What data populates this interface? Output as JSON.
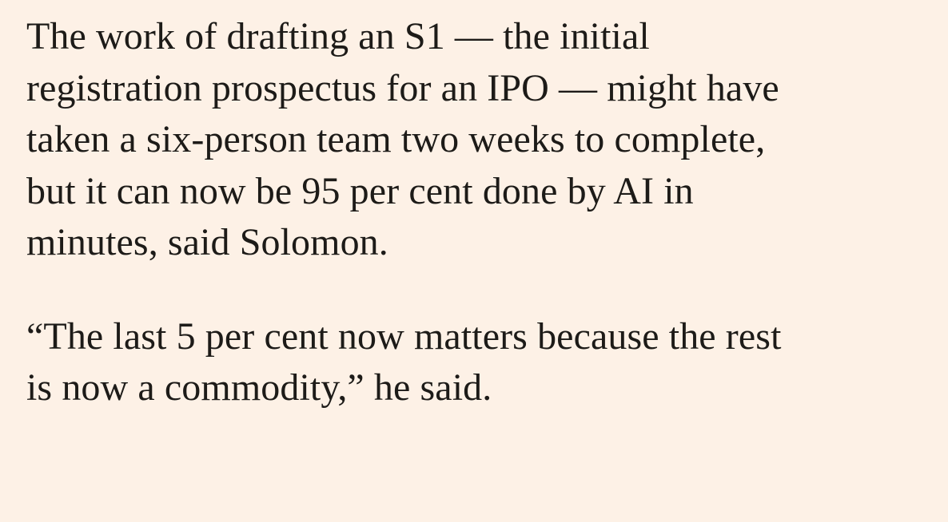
{
  "article": {
    "paragraphs": [
      {
        "lines": [
          "The work of drafting an S1 — the initial",
          "registration prospectus for an IPO — might have",
          "taken a six-person team two weeks to complete,",
          "but it can now be 95 per cent done by AI in",
          "minutes, said Solomon."
        ]
      },
      {
        "lines": [
          "“The last 5 per cent now matters because the rest",
          "is now a commodity,” he said."
        ]
      }
    ]
  },
  "colors": {
    "background": "#fdf1e6",
    "text": "#1d1b18"
  }
}
